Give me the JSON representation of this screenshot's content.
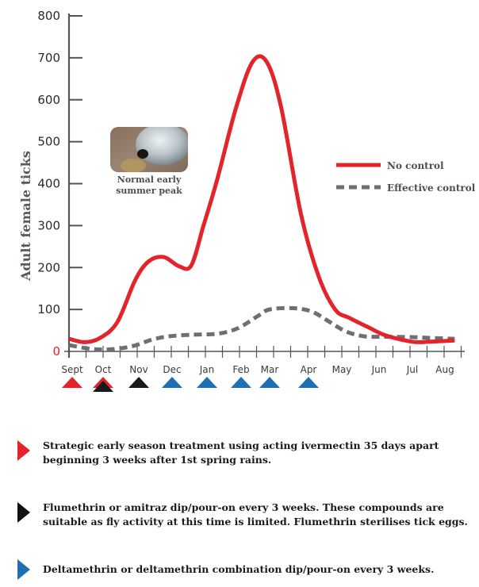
{
  "chart_data": {
    "type": "line",
    "title": "",
    "xlabel": "",
    "ylabel": "Adult female ticks",
    "ylim": [
      0,
      800
    ],
    "yticks": [
      0,
      100,
      200,
      300,
      400,
      500,
      600,
      700,
      800
    ],
    "categories": [
      "Sept",
      "Oct",
      "Nov",
      "Dec",
      "Jan",
      "Feb",
      "Mar",
      "Apr",
      "May",
      "Jun",
      "Jul",
      "Aug"
    ],
    "grid": false,
    "legend_position": "right",
    "series": [
      {
        "name": "No control",
        "color": "#e3242b",
        "style": "solid",
        "x": [
          -0.1,
          0.4,
          0.9,
          1.4,
          1.9,
          2.3,
          2.75,
          3.2,
          3.55,
          3.9,
          4.3,
          4.85,
          5.4,
          5.9,
          6.3,
          6.8,
          7.3,
          7.8,
          8.2,
          8.7,
          9.2,
          10.0,
          10.5,
          11.3
        ],
        "values": [
          30,
          22,
          32,
          70,
          170,
          215,
          225,
          203,
          205,
          300,
          410,
          580,
          690,
          690,
          580,
          330,
          180,
          100,
          80,
          58,
          38,
          23,
          23,
          26
        ]
      },
      {
        "name": "Effective control",
        "color": "#6d6f73",
        "style": "dashed",
        "x": [
          -0.1,
          0.6,
          1.2,
          1.8,
          2.4,
          2.9,
          3.6,
          4.3,
          4.9,
          5.6,
          6.0,
          6.6,
          7.1,
          7.6,
          8.1,
          8.6,
          9.2,
          10.0,
          10.6,
          11.3
        ],
        "values": [
          15,
          6,
          5,
          12,
          28,
          36,
          40,
          42,
          55,
          85,
          100,
          103,
          95,
          72,
          48,
          36,
          35,
          34,
          32,
          30
        ]
      }
    ],
    "markers": [
      {
        "month": "Sept",
        "colors": [
          "#e3242b"
        ]
      },
      {
        "month": "Oct",
        "colors": [
          "#e3242b",
          "#1a1a1a"
        ]
      },
      {
        "month": "Nov",
        "colors": [
          "#1a1a1a"
        ]
      },
      {
        "month": "Dec",
        "colors": [
          "#1f6fb5"
        ]
      },
      {
        "month": "Jan",
        "colors": [
          "#1f6fb5"
        ]
      },
      {
        "month": "Feb",
        "colors": [
          "#1f6fb5"
        ]
      },
      {
        "month": "Mar",
        "colors": [
          "#1f6fb5"
        ]
      },
      {
        "month": "Apr",
        "colors": [
          "#1f6fb5"
        ]
      }
    ],
    "annotation": {
      "lines": [
        "Normal early",
        "summer peak"
      ],
      "x": 2.5,
      "y": 470,
      "image": "tick-photo"
    }
  },
  "notes": [
    {
      "color": "#e3242b",
      "lines": [
        "Strategic early season treatment using acting ivermectin 35 days apart",
        "beginning 3 weeks after 1st spring rains."
      ]
    },
    {
      "color": "#111111",
      "lines": [
        "Flumethrin or amitraz dip/pour-on every 3 weeks. These compounds are",
        "suitable as fly activity at this time is limited. Flumethrin sterilises tick eggs."
      ]
    },
    {
      "color": "#1f6fb5",
      "lines": [
        "Deltamethrin or deltamethrin combination dip/pour-on every 3 weeks."
      ]
    }
  ]
}
